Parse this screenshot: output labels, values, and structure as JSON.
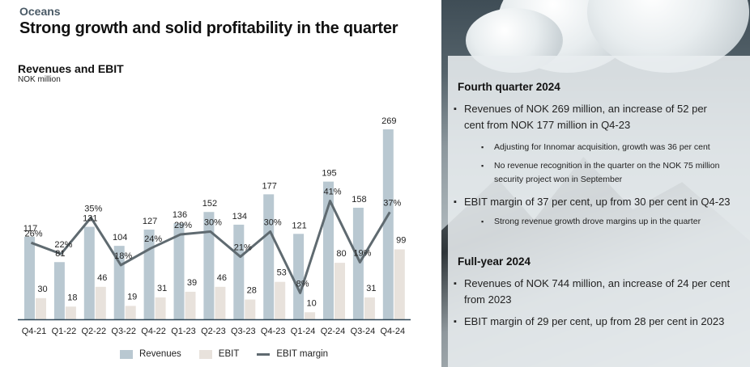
{
  "header": {
    "section": "Oceans",
    "title": "Strong growth and solid profitability in the quarter"
  },
  "chart_data": {
    "type": "bar",
    "title": "Revenues and EBIT",
    "subtitle": "NOK million",
    "xlabel": "",
    "ylabel": "",
    "grid": false,
    "legend_position": "bottom",
    "categories": [
      "Q4-21",
      "Q1-22",
      "Q2-22",
      "Q3-22",
      "Q4-22",
      "Q1-23",
      "Q2-23",
      "Q3-23",
      "Q4-23",
      "Q1-24",
      "Q2-24",
      "Q3-24",
      "Q4-24"
    ],
    "series": [
      {
        "name": "Revenues",
        "type": "bar",
        "color": "#b9c8d1",
        "values": [
          117,
          81,
          131,
          104,
          127,
          136,
          152,
          134,
          177,
          121,
          195,
          158,
          269
        ]
      },
      {
        "name": "EBIT",
        "type": "bar",
        "color": "#e8e2dc",
        "values": [
          30,
          18,
          46,
          19,
          31,
          39,
          46,
          28,
          53,
          10,
          80,
          31,
          99
        ]
      },
      {
        "name": "EBIT margin",
        "type": "line",
        "color": "#5f6a70",
        "unit": "%",
        "values": [
          26,
          22,
          35,
          18,
          24,
          29,
          30,
          21,
          30,
          8,
          41,
          19,
          37
        ]
      }
    ],
    "ylim": [
      0,
      280
    ]
  },
  "legend": {
    "items": [
      {
        "label": "Revenues",
        "color": "#b9c8d1"
      },
      {
        "label": "EBIT",
        "color": "#e8e2dc"
      },
      {
        "label": "EBIT margin",
        "color": "#5f6a70"
      }
    ]
  },
  "panel": {
    "q4": {
      "heading": "Fourth quarter 2024",
      "bullets": [
        {
          "text": "Revenues of NOK 269 million, an increase of 52 per cent from NOK 177 million in Q4-23",
          "sub": [
            "Adjusting for Innomar acquisition, growth was 36 per cent",
            "No revenue recognition in the quarter on the NOK 75 million security project won in September"
          ]
        },
        {
          "text": "EBIT margin of 37 per cent, up from 30 per cent in Q4-23",
          "sub": [
            "Strong revenue growth drove margins up in the quarter"
          ]
        }
      ]
    },
    "fy": {
      "heading": "Full-year 2024",
      "bullets": [
        {
          "text": "Revenues of NOK 744 million, an increase of 24 per cent from 2023"
        },
        {
          "text": "EBIT margin of 29 per cent, up from 28 per cent in 2023"
        }
      ]
    }
  }
}
